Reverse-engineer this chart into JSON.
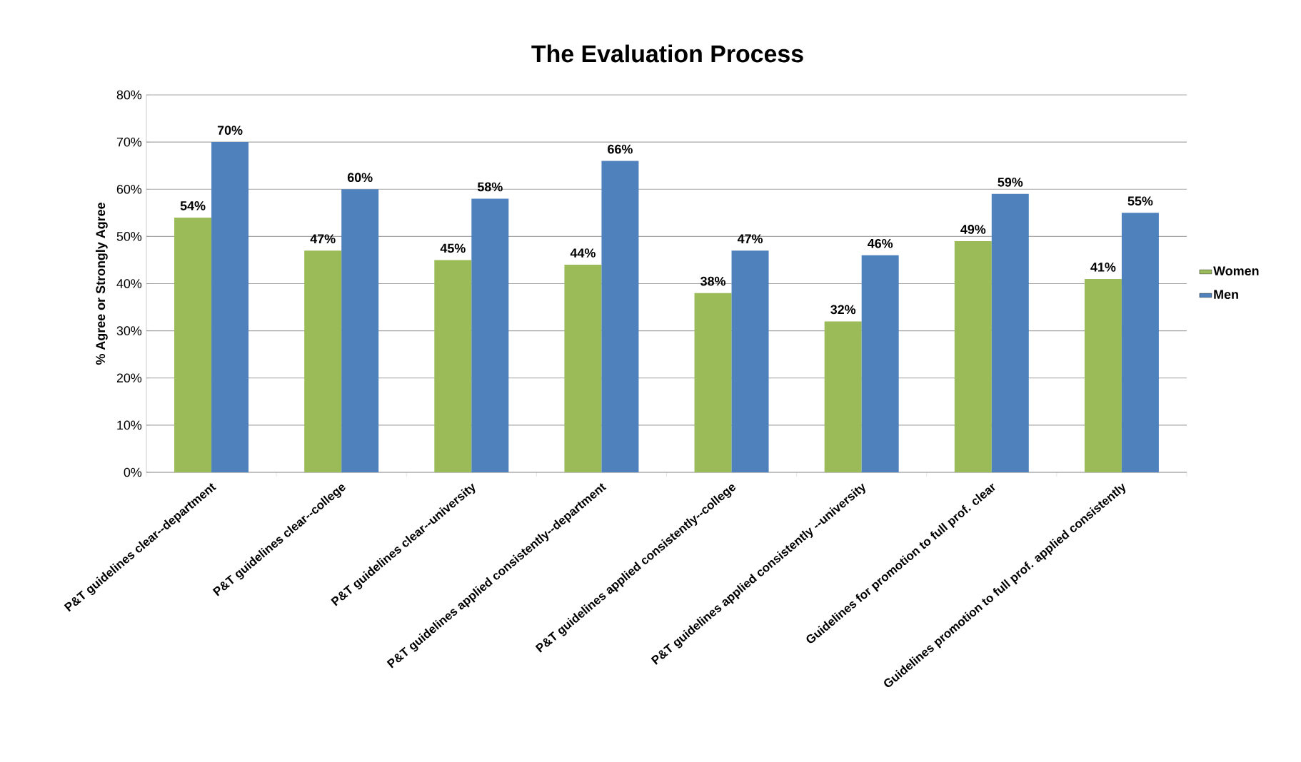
{
  "chart_data": {
    "type": "bar",
    "title": "The Evaluation Process",
    "ylabel": "% Agree or Strongly Agree",
    "categories": [
      "P&T guidelines clear--department",
      "P&T guidelines clear--college",
      "P&T guidelines clear--university",
      "P&T guidelines applied consistently--department",
      "P&T guidelines applied consistently--college",
      "P&T guidelines applied consistently  --university",
      "Guidelines  for promotion to full prof. clear",
      "Guidelines  promotion  to full prof. applied consistently"
    ],
    "series": [
      {
        "name": "Women",
        "color": "#9bbb59",
        "values": [
          54,
          47,
          45,
          44,
          38,
          32,
          49,
          41
        ],
        "value_labels": [
          "54%",
          "47%",
          "45%",
          "44%",
          "38%",
          "32%",
          "49%",
          "41%"
        ]
      },
      {
        "name": "Men",
        "color": "#4f81bd",
        "values": [
          70,
          60,
          58,
          66,
          47,
          46,
          59,
          55
        ],
        "value_labels": [
          "70%",
          "60%",
          "58%",
          "66%",
          "47%",
          "46%",
          "59%",
          "55%"
        ]
      }
    ],
    "ylim": [
      0,
      80
    ],
    "yticks": [
      {
        "value": 0,
        "label": "0%"
      },
      {
        "value": 10,
        "label": "10%"
      },
      {
        "value": 20,
        "label": "20%"
      },
      {
        "value": 30,
        "label": "30%"
      },
      {
        "value": 40,
        "label": "40%"
      },
      {
        "value": 50,
        "label": "50%"
      },
      {
        "value": 60,
        "label": "60%"
      },
      {
        "value": 70,
        "label": "70%"
      },
      {
        "value": 80,
        "label": "80%"
      }
    ],
    "grid": "y",
    "legend": "right"
  }
}
